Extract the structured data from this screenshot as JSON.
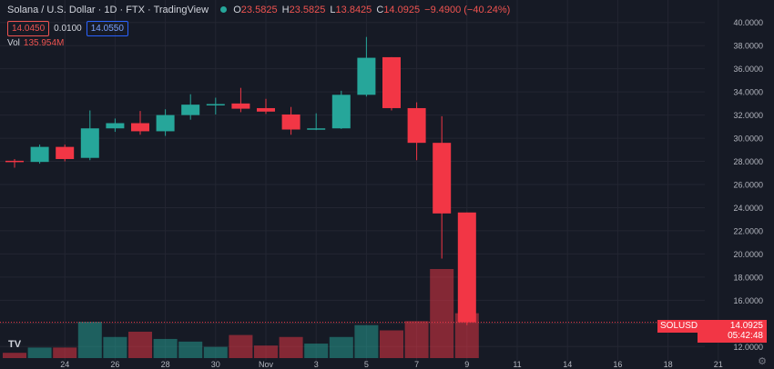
{
  "legend": {
    "title": "Solana / U.S. Dollar · 1D · FTX · TradingView",
    "open_label": "O",
    "open": "23.5825",
    "high_label": "H",
    "high": "23.5825",
    "low_label": "L",
    "low": "13.8425",
    "close_label": "C",
    "close": "14.0925",
    "change": "−9.4900 (−40.24%)"
  },
  "quote": {
    "bid": "14.0450",
    "spread": "0.0100",
    "ask": "14.0550"
  },
  "volume": {
    "label": "Vol",
    "value": "135.954M"
  },
  "price_tag": {
    "symbol": "SOLUSD",
    "price": "14.0925",
    "countdown": "05:42:48"
  },
  "logo_text": "TV",
  "gear_icon": "gear-icon",
  "colors": {
    "up": "#26a69a",
    "down": "#f23645",
    "background": "#161a25",
    "grid": "#232632",
    "text": "#b2b5be"
  },
  "chart_data": {
    "type": "candlestick",
    "y_axis": {
      "min": 11.0,
      "max": 41.0,
      "position": "right",
      "ticks": [
        12,
        14,
        16,
        18,
        20,
        22,
        24,
        26,
        28,
        30,
        32,
        34,
        36,
        38,
        40
      ],
      "tick_labels": [
        "12.0000",
        "14.0000",
        "16.0000",
        "18.0000",
        "20.0000",
        "22.0000",
        "24.0000",
        "26.0000",
        "28.0000",
        "30.0000",
        "32.0000",
        "34.0000",
        "36.0000",
        "38.0000",
        "40.0000"
      ]
    },
    "x_axis": {
      "labels": [
        {
          "day": 1,
          "text": "24"
        },
        {
          "day": 3,
          "text": "26"
        },
        {
          "day": 5,
          "text": "28"
        },
        {
          "day": 7,
          "text": "30"
        },
        {
          "day": 9,
          "text": "Nov"
        },
        {
          "day": 11,
          "text": "3"
        },
        {
          "day": 13,
          "text": "5"
        },
        {
          "day": 15,
          "text": "7"
        },
        {
          "day": 17,
          "text": "9"
        },
        {
          "day": 19,
          "text": "11"
        },
        {
          "day": 21,
          "text": "14"
        },
        {
          "day": 23,
          "text": "16"
        },
        {
          "day": 25,
          "text": "18"
        },
        {
          "day": 27,
          "text": "21"
        }
      ]
    },
    "candles": [
      {
        "o": 28.05,
        "h": 28.2,
        "l": 27.45,
        "c": 27.95,
        "vol": 0.4
      },
      {
        "o": 27.95,
        "h": 29.45,
        "l": 27.8,
        "c": 29.25,
        "vol": 0.8
      },
      {
        "o": 29.25,
        "h": 29.45,
        "l": 28.0,
        "c": 28.2,
        "vol": 0.8
      },
      {
        "o": 28.3,
        "h": 32.4,
        "l": 28.1,
        "c": 30.85,
        "vol": 2.75
      },
      {
        "o": 30.85,
        "h": 31.7,
        "l": 30.55,
        "c": 31.3,
        "vol": 1.6
      },
      {
        "o": 31.3,
        "h": 32.35,
        "l": 30.3,
        "c": 30.6,
        "vol": 2.0
      },
      {
        "o": 30.6,
        "h": 32.5,
        "l": 30.2,
        "c": 32.0,
        "vol": 1.45
      },
      {
        "o": 32.0,
        "h": 33.8,
        "l": 31.6,
        "c": 32.9,
        "vol": 1.25
      },
      {
        "o": 32.9,
        "h": 33.5,
        "l": 32.05,
        "c": 32.95,
        "vol": 0.85
      },
      {
        "o": 33.0,
        "h": 34.35,
        "l": 32.25,
        "c": 32.55,
        "vol": 1.75
      },
      {
        "o": 32.6,
        "h": 33.4,
        "l": 32.1,
        "c": 32.3,
        "vol": 0.95
      },
      {
        "o": 32.05,
        "h": 32.7,
        "l": 30.3,
        "c": 30.75,
        "vol": 1.6
      },
      {
        "o": 30.75,
        "h": 32.15,
        "l": 30.7,
        "c": 30.85,
        "vol": 1.1
      },
      {
        "o": 30.85,
        "h": 34.1,
        "l": 30.8,
        "c": 33.75,
        "vol": 1.6
      },
      {
        "o": 33.75,
        "h": 38.75,
        "l": 33.6,
        "c": 36.95,
        "vol": 2.5
      },
      {
        "o": 37.0,
        "h": 37.0,
        "l": 32.4,
        "c": 32.6,
        "vol": 2.1
      },
      {
        "o": 32.6,
        "h": 33.1,
        "l": 28.1,
        "c": 29.6,
        "vol": 2.8
      },
      {
        "o": 29.6,
        "h": 31.9,
        "l": 19.6,
        "c": 23.5,
        "vol": 6.75
      },
      {
        "o": 23.5825,
        "h": 23.5825,
        "l": 13.8425,
        "c": 14.0925,
        "vol": 3.4
      }
    ],
    "current_price": 14.0925
  }
}
